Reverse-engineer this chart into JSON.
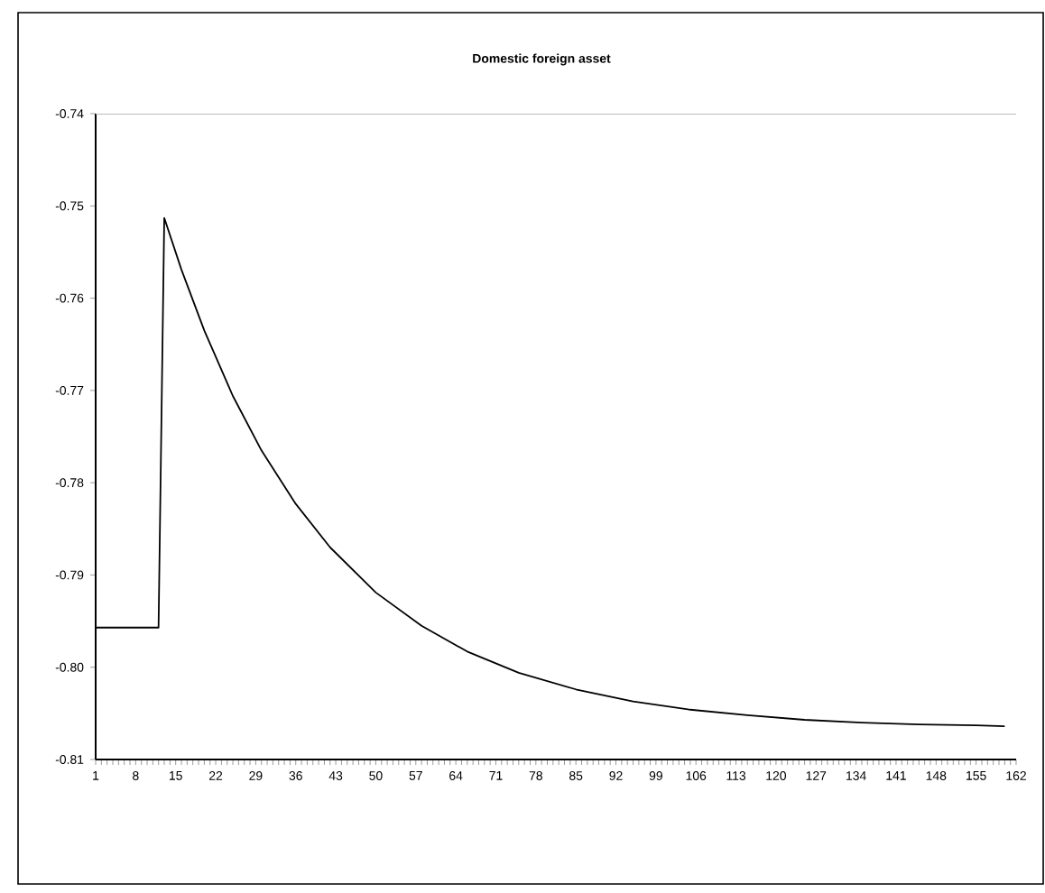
{
  "chart_data": {
    "type": "line",
    "title": "Domestic foreign asset",
    "x": [
      1,
      12,
      13,
      16,
      20,
      25,
      30,
      36,
      42,
      50,
      58,
      66,
      75,
      85,
      95,
      105,
      115,
      125,
      135,
      145,
      155,
      160
    ],
    "series": [
      {
        "color": "#000000",
        "values": [
          -0.7957,
          -0.7957,
          -0.7513,
          -0.7569,
          -0.7635,
          -0.7706,
          -0.7765,
          -0.7823,
          -0.787,
          -0.7919,
          -0.7955,
          -0.7983,
          -0.8006,
          -0.8024,
          -0.8037,
          -0.8046,
          -0.8052,
          -0.8057,
          -0.806,
          -0.8062,
          -0.8063,
          -0.8064
        ]
      }
    ],
    "xlim": [
      1,
      162
    ],
    "xticks": [
      1,
      8,
      15,
      22,
      29,
      36,
      43,
      50,
      57,
      64,
      71,
      78,
      85,
      92,
      99,
      106,
      113,
      120,
      127,
      134,
      141,
      148,
      155,
      162
    ],
    "ylim": [
      -0.81,
      -0.74
    ],
    "yticks": [
      {
        "value": -0.81,
        "label": "-0.81"
      },
      {
        "value": -0.8,
        "label": "-0.80"
      },
      {
        "value": -0.79,
        "label": "-0.79"
      },
      {
        "value": -0.78,
        "label": "-0.78"
      },
      {
        "value": -0.77,
        "label": "-0.77"
      },
      {
        "value": -0.76,
        "label": "-0.76"
      },
      {
        "value": -0.75,
        "label": "-0.75"
      },
      {
        "value": -0.74,
        "label": "-0.74"
      }
    ],
    "grid": false,
    "legend": false,
    "marker": "none",
    "line_style": "solid"
  }
}
